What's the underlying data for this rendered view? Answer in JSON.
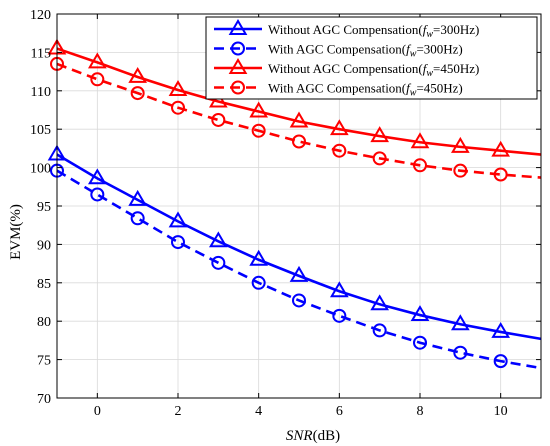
{
  "chart_data": {
    "type": "line",
    "title": "",
    "xlabel": {
      "italic": "SNR",
      "unit": "(dB)"
    },
    "ylabel": "EVM(%)",
    "xlim": [
      -1,
      11
    ],
    "ylim": [
      70,
      120
    ],
    "xticks": [
      0,
      2,
      4,
      6,
      8,
      10
    ],
    "yticks": [
      70,
      75,
      80,
      85,
      90,
      95,
      100,
      105,
      110,
      115,
      120
    ],
    "grid": true,
    "legend_position": "top-right",
    "x": [
      -1,
      0,
      1,
      2,
      3,
      4,
      5,
      6,
      7,
      8,
      9,
      10,
      11
    ],
    "series": [
      {
        "name": "Without AGC Compensation(f_w=300Hz)",
        "legend": {
          "pre": "Without AGC Compensation(",
          "var": "f",
          "sub": "w",
          "post": "=300Hz)"
        },
        "color": "#0000ff",
        "dash": "solid",
        "marker": "triangle",
        "values": [
          101.7,
          98.6,
          95.8,
          93.0,
          90.4,
          88.0,
          85.9,
          83.9,
          82.2,
          80.8,
          79.6,
          78.6,
          77.7
        ]
      },
      {
        "name": "With AGC Compensation(f_w=300Hz)",
        "legend": {
          "pre": "With AGC Compensation(",
          "var": "f",
          "sub": "w",
          "post": "=300Hz)"
        },
        "color": "#0000ff",
        "dash": "dashed",
        "marker": "circle",
        "values": [
          99.6,
          96.5,
          93.4,
          90.3,
          87.6,
          85.0,
          82.7,
          80.7,
          78.8,
          77.2,
          75.9,
          74.8,
          73.9
        ]
      },
      {
        "name": "Without AGC Compensation(f_w=450Hz)",
        "legend": {
          "pre": "Without AGC Compensation(",
          "var": "f",
          "sub": "w",
          "post": "=450Hz)"
        },
        "color": "#ff0000",
        "dash": "solid",
        "marker": "triangle",
        "values": [
          115.5,
          113.7,
          111.8,
          110.1,
          108.6,
          107.3,
          106.0,
          105.0,
          104.1,
          103.3,
          102.7,
          102.2,
          101.7
        ]
      },
      {
        "name": "With AGC Compensation(f_w=450Hz)",
        "legend": {
          "pre": "With AGC Compensation(",
          "var": "f",
          "sub": "w",
          "post": "=450Hz)"
        },
        "color": "#ff0000",
        "dash": "dashed",
        "marker": "circle",
        "values": [
          113.5,
          111.5,
          109.7,
          107.8,
          106.2,
          104.8,
          103.4,
          102.2,
          101.2,
          100.3,
          99.6,
          99.1,
          98.7
        ]
      }
    ]
  }
}
